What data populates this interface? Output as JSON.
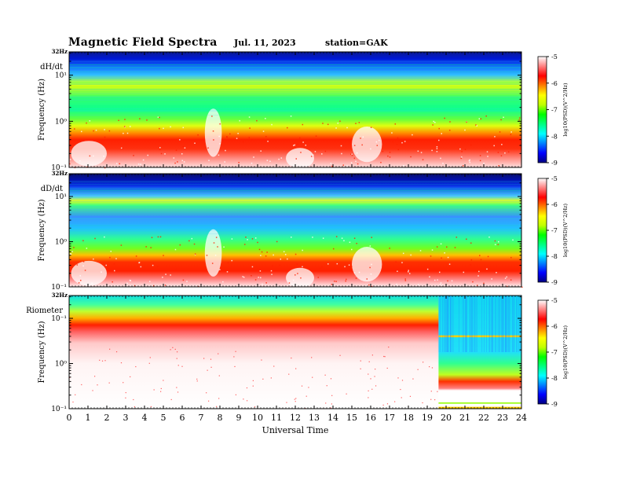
{
  "header": {
    "title": "Magnetic Field Spectra",
    "date": "Jul. 11, 2023",
    "station": "station=GAK"
  },
  "chart_data": {
    "type": "heatmap",
    "x_axis": {
      "label": "Universal Time",
      "ticks": [
        0,
        1,
        2,
        3,
        4,
        5,
        6,
        7,
        8,
        9,
        10,
        11,
        12,
        13,
        14,
        15,
        16,
        17,
        18,
        19,
        20,
        21,
        22,
        23,
        24
      ],
      "range": [
        0,
        24
      ]
    },
    "colorbar": {
      "label": "log10(PSD)(V^2/Hz)",
      "ticks": [
        -5,
        -6,
        -7,
        -8,
        -9
      ],
      "range": [
        -9,
        -5
      ],
      "colormap": [
        "#000080",
        "#0000ff",
        "#0080ff",
        "#00ffff",
        "#00ff80",
        "#00ff00",
        "#c0ff00",
        "#ffff00",
        "#ff8000",
        "#ff0000",
        "#ff8080",
        "#ffffff"
      ]
    },
    "panels": [
      {
        "name": "dH/dt",
        "ylabel": "Frequency (Hz)",
        "top_label": "32Hz",
        "yticks": [
          "10¹",
          "10⁰",
          "10⁻¹"
        ],
        "ylim": [
          0.1,
          32
        ]
      },
      {
        "name": "dD/dt",
        "ylabel": "Frequency (Hz)",
        "top_label": "32Hz",
        "yticks": [
          "10¹",
          "10⁰",
          "10⁻¹"
        ],
        "ylim": [
          0.1,
          32
        ]
      },
      {
        "name": "Riometer",
        "ylabel": "Frequency (Hz)",
        "top_label": "32Hz",
        "yticks": [
          "10⁻¹",
          "10⁰",
          "10⁻¹"
        ],
        "ylim": [
          0.1,
          32
        ]
      }
    ]
  }
}
